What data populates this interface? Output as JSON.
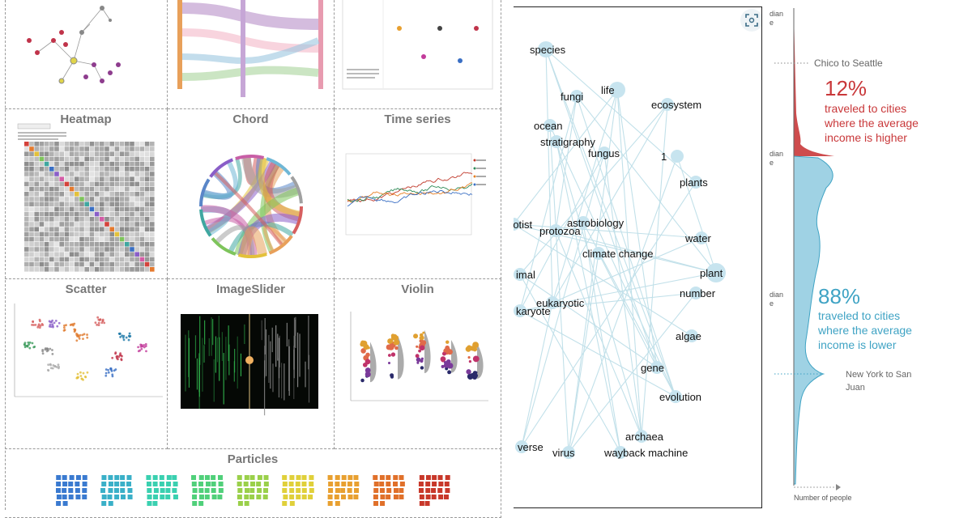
{
  "gallery": {
    "titles": {
      "heatmap": "Heatmap",
      "chord": "Chord",
      "timeseries": "Time series",
      "scatter": "Scatter",
      "imageslider": "ImageSlider",
      "violin": "Violin",
      "particles": "Particles"
    }
  },
  "network": {
    "nodes": [
      "species",
      "fungi",
      "life",
      "ecosystem",
      "ocean",
      "stratigraphy",
      "fungus",
      "1",
      "plants",
      "rotist",
      "astrobiology",
      "protozoa",
      "water",
      "climate change",
      "plant",
      "imal",
      "number",
      "eukaryotic",
      "karyote",
      "algae",
      "gene",
      "evolution",
      "archaea",
      "verse",
      "virus",
      "wayback machine"
    ]
  },
  "distribution": {
    "top_label": "Chico to Seattle",
    "higher_pct": "12%",
    "higher_text": [
      "traveled to cities",
      "where the average",
      "income is higher"
    ],
    "lower_pct": "88%",
    "lower_text": [
      "traveled to cities",
      "where the average",
      "income is lower"
    ],
    "bottom_label_1": "New York to San",
    "bottom_label_2": "Juan",
    "axis_label": "Number of people",
    "median_fragment_1": "dian",
    "median_fragment_2": "e",
    "colors": {
      "higher": "#c9383a",
      "lower": "#3fa3c4"
    }
  }
}
